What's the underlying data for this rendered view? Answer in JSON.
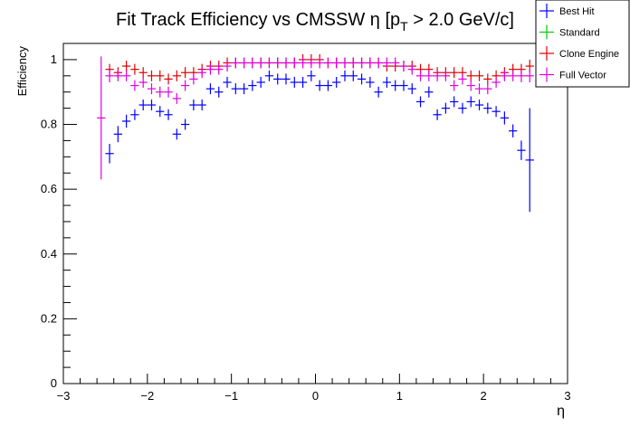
{
  "chart_data": {
    "type": "scatter",
    "title": "Fit Track Efficiency vs CMSSW η [p",
    "title_sub": "T",
    "title_tail": " > 2.0 GeV/c]",
    "xlabel": "η",
    "ylabel": "Efficiency",
    "xlim": [
      -3.0,
      3.0
    ],
    "ylim": [
      0.0,
      1.05
    ],
    "xticks": [
      -3,
      -2,
      -1,
      0,
      1,
      2,
      3
    ],
    "xtick_labels": [
      "−3",
      "−2",
      "−1",
      "0",
      "1",
      "2",
      "3"
    ],
    "yticks": [
      0,
      0.2,
      0.4,
      0.6,
      0.8,
      1
    ],
    "ytick_labels": [
      "0",
      "0.2",
      "0.4",
      "0.6",
      "0.8",
      "1"
    ],
    "x_bin_half_width": 0.05,
    "legend": [
      "Best Hit",
      "Standard",
      "Clone Engine",
      "Full Vector"
    ],
    "legend_position": "top-right",
    "colors": {
      "Best Hit": "#0000ff",
      "Standard": "#00cc00",
      "Clone Engine": "#e00000",
      "Full Vector": "#e000e0"
    },
    "series": [
      {
        "name": "Best Hit",
        "x": [
          -2.45,
          -2.35,
          -2.25,
          -2.15,
          -2.05,
          -1.95,
          -1.85,
          -1.75,
          -1.65,
          -1.55,
          -1.45,
          -1.35,
          -1.25,
          -1.15,
          -1.05,
          -0.95,
          -0.85,
          -0.75,
          -0.65,
          -0.55,
          -0.45,
          -0.35,
          -0.25,
          -0.15,
          -0.05,
          0.05,
          0.15,
          0.25,
          0.35,
          0.45,
          0.55,
          0.65,
          0.75,
          0.85,
          0.95,
          1.05,
          1.15,
          1.25,
          1.35,
          1.45,
          1.55,
          1.65,
          1.75,
          1.85,
          1.95,
          2.05,
          2.15,
          2.25,
          2.35,
          2.45,
          2.55
        ],
        "y": [
          0.71,
          0.77,
          0.81,
          0.83,
          0.86,
          0.86,
          0.84,
          0.83,
          0.77,
          0.8,
          0.86,
          0.86,
          0.91,
          0.9,
          0.93,
          0.91,
          0.91,
          0.92,
          0.93,
          0.95,
          0.94,
          0.94,
          0.93,
          0.93,
          0.95,
          0.92,
          0.92,
          0.93,
          0.95,
          0.95,
          0.94,
          0.93,
          0.9,
          0.93,
          0.92,
          0.92,
          0.91,
          0.87,
          0.9,
          0.83,
          0.85,
          0.87,
          0.85,
          0.87,
          0.86,
          0.85,
          0.84,
          0.82,
          0.78,
          0.72,
          0.69
        ],
        "err": [
          0.03,
          0.025,
          0.02,
          0.015,
          0.015,
          0.015,
          0.015,
          0.015,
          0.015,
          0.015,
          0.015,
          0.015,
          0.012,
          0.01,
          0.01,
          0.01,
          0.01,
          0.01,
          0.01,
          0.01,
          0.01,
          0.01,
          0.01,
          0.01,
          0.01,
          0.01,
          0.01,
          0.01,
          0.01,
          0.01,
          0.01,
          0.01,
          0.01,
          0.01,
          0.01,
          0.01,
          0.012,
          0.015,
          0.015,
          0.015,
          0.015,
          0.015,
          0.015,
          0.015,
          0.015,
          0.015,
          0.015,
          0.02,
          0.02,
          0.03,
          0.16
        ]
      },
      {
        "name": "Standard",
        "x": [],
        "y": [],
        "err": []
      },
      {
        "name": "Clone Engine",
        "x": [
          -2.45,
          -2.35,
          -2.25,
          -2.15,
          -2.05,
          -1.95,
          -1.85,
          -1.75,
          -1.65,
          -1.55,
          -1.45,
          -1.35,
          -1.25,
          -1.15,
          -1.05,
          -0.95,
          -0.85,
          -0.75,
          -0.65,
          -0.55,
          -0.45,
          -0.35,
          -0.25,
          -0.15,
          -0.05,
          0.05,
          0.15,
          0.25,
          0.35,
          0.45,
          0.55,
          0.65,
          0.75,
          0.85,
          0.95,
          1.05,
          1.15,
          1.25,
          1.35,
          1.45,
          1.55,
          1.65,
          1.75,
          1.85,
          1.95,
          2.05,
          2.15,
          2.25,
          2.35,
          2.45,
          2.55
        ],
        "y": [
          0.97,
          0.96,
          0.98,
          0.97,
          0.96,
          0.95,
          0.95,
          0.94,
          0.95,
          0.96,
          0.96,
          0.97,
          0.98,
          0.98,
          0.99,
          0.99,
          0.99,
          0.99,
          0.99,
          0.99,
          0.99,
          0.99,
          0.99,
          1.0,
          1.0,
          1.0,
          0.99,
          0.99,
          0.99,
          0.99,
          0.99,
          0.99,
          0.99,
          0.98,
          0.98,
          0.98,
          0.98,
          0.97,
          0.97,
          0.96,
          0.96,
          0.96,
          0.96,
          0.95,
          0.95,
          0.94,
          0.95,
          0.96,
          0.97,
          0.97,
          0.98
        ],
        "err": [
          0.01,
          0.01,
          0.008,
          0.006,
          0.006,
          0.006,
          0.006,
          0.006,
          0.006,
          0.006,
          0.006,
          0.005,
          0.005,
          0.004,
          0.004,
          0.003,
          0.003,
          0.003,
          0.003,
          0.003,
          0.003,
          0.003,
          0.003,
          0.003,
          0.003,
          0.003,
          0.003,
          0.003,
          0.003,
          0.003,
          0.003,
          0.003,
          0.003,
          0.003,
          0.003,
          0.003,
          0.004,
          0.004,
          0.005,
          0.005,
          0.006,
          0.006,
          0.006,
          0.006,
          0.006,
          0.006,
          0.006,
          0.008,
          0.01,
          0.01,
          0.02
        ]
      },
      {
        "name": "Full Vector",
        "x": [
          -2.55,
          -2.45,
          -2.35,
          -2.25,
          -2.15,
          -2.05,
          -1.95,
          -1.85,
          -1.75,
          -1.65,
          -1.55,
          -1.45,
          -1.35,
          -1.25,
          -1.15,
          -1.05,
          -0.95,
          -0.85,
          -0.75,
          -0.65,
          -0.55,
          -0.45,
          -0.35,
          -0.25,
          -0.15,
          -0.05,
          0.05,
          0.15,
          0.25,
          0.35,
          0.45,
          0.55,
          0.65,
          0.75,
          0.85,
          0.95,
          1.05,
          1.15,
          1.25,
          1.35,
          1.45,
          1.55,
          1.65,
          1.75,
          1.85,
          1.95,
          2.05,
          2.15,
          2.25,
          2.35,
          2.45,
          2.55
        ],
        "y": [
          0.82,
          0.95,
          0.95,
          0.95,
          0.92,
          0.93,
          0.91,
          0.9,
          0.9,
          0.88,
          0.92,
          0.94,
          0.96,
          0.97,
          0.97,
          0.98,
          0.99,
          0.99,
          0.99,
          0.99,
          0.99,
          0.99,
          0.99,
          0.99,
          0.99,
          0.99,
          0.99,
          0.99,
          0.99,
          0.99,
          0.99,
          0.99,
          0.99,
          0.99,
          0.99,
          0.99,
          0.98,
          0.97,
          0.95,
          0.95,
          0.95,
          0.95,
          0.92,
          0.94,
          0.92,
          0.91,
          0.91,
          0.93,
          0.95,
          0.95,
          0.95,
          0.95
        ],
        "err": [
          0.19,
          0.02,
          0.015,
          0.01,
          0.01,
          0.01,
          0.01,
          0.01,
          0.01,
          0.01,
          0.008,
          0.006,
          0.005,
          0.005,
          0.004,
          0.004,
          0.003,
          0.003,
          0.003,
          0.003,
          0.003,
          0.003,
          0.003,
          0.003,
          0.003,
          0.003,
          0.003,
          0.003,
          0.003,
          0.003,
          0.003,
          0.003,
          0.003,
          0.003,
          0.003,
          0.003,
          0.004,
          0.004,
          0.006,
          0.006,
          0.008,
          0.008,
          0.01,
          0.01,
          0.01,
          0.01,
          0.01,
          0.01,
          0.01,
          0.01,
          0.02,
          0.02
        ]
      }
    ]
  }
}
